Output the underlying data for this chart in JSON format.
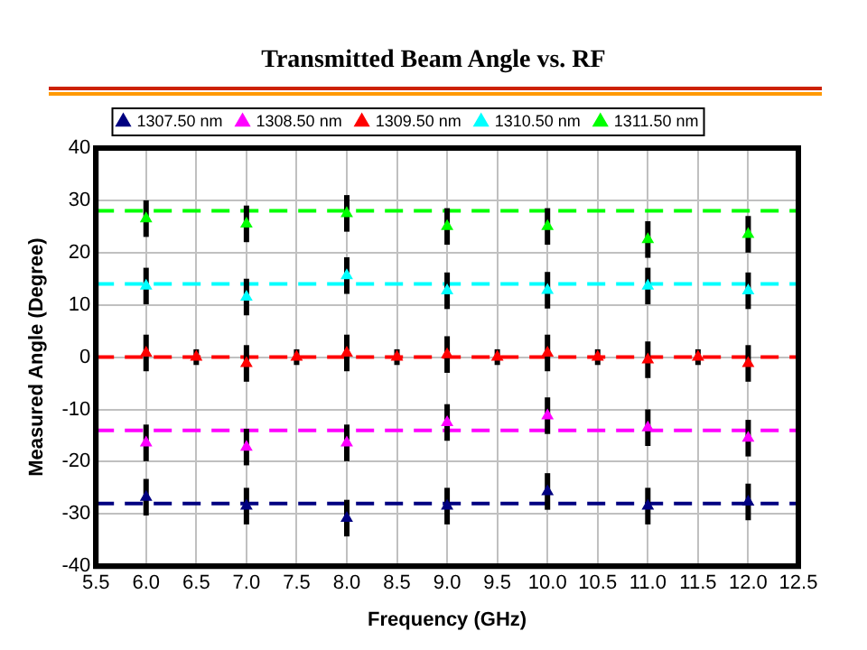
{
  "chart_data": {
    "type": "scatter",
    "title": "Transmitted Beam Angle vs. RF",
    "xlabel": "Frequency (GHz)",
    "ylabel": "Measured Angle (Degree)",
    "xlim": [
      5.5,
      12.5
    ],
    "xticks": [
      {
        "value": 5.5,
        "label": "5.5"
      },
      {
        "value": 6,
        "label": "6.0"
      },
      {
        "value": 6.5,
        "label": "6.5"
      },
      {
        "value": 7,
        "label": "7.0"
      },
      {
        "value": 7.5,
        "label": "7.5"
      },
      {
        "value": 8,
        "label": "8.0"
      },
      {
        "value": 8.5,
        "label": "8.5"
      },
      {
        "value": 9,
        "label": "9.0"
      },
      {
        "value": 9.5,
        "label": "9.5"
      },
      {
        "value": 10,
        "label": "10.0"
      },
      {
        "value": 10.5,
        "label": "10.5"
      },
      {
        "value": 11,
        "label": "11.0"
      },
      {
        "value": 11.5,
        "label": "11.5"
      },
      {
        "value": 12,
        "label": "12.0"
      },
      {
        "value": 12.5,
        "label": "12.5"
      }
    ],
    "ylim": [
      -40,
      40
    ],
    "yticks": [
      -40,
      -30,
      -20,
      -10,
      0,
      10,
      20,
      30,
      40
    ],
    "grid": true,
    "legend": "top",
    "marker": "triangle",
    "series": [
      {
        "name": "1307.50 nm",
        "color": "#000080",
        "x": [
          6,
          7,
          8,
          9,
          10,
          11,
          12
        ],
        "values": [
          -26.8,
          -28.5,
          -30.8,
          -28.5,
          -25.7,
          -28.5,
          -27.7
        ],
        "errors": [
          3.5,
          3.5,
          3.5,
          3.5,
          3.5,
          3.5,
          3.5
        ]
      },
      {
        "name": "1308.50 nm",
        "color": "#ff00ff",
        "x": [
          6,
          7,
          8,
          9,
          10,
          11,
          12
        ],
        "values": [
          -16.4,
          -17.2,
          -16.4,
          -12.5,
          -11.2,
          -13.5,
          -15.5
        ],
        "errors": [
          3.5,
          3.5,
          3.5,
          3.5,
          3.5,
          3.5,
          3.5
        ]
      },
      {
        "name": "1309.50 nm",
        "color": "#ff0000",
        "x": [
          6,
          6.5,
          7,
          7.5,
          8,
          8.5,
          9,
          9.5,
          10,
          10.5,
          11,
          11.5,
          12
        ],
        "values": [
          0.8,
          0,
          -1.2,
          0,
          0.8,
          0,
          0.5,
          0,
          0.8,
          0,
          -0.5,
          0,
          -1.2
        ],
        "errors": [
          3.5,
          1.5,
          3.5,
          1.5,
          3.5,
          1.5,
          3.5,
          1.5,
          3.5,
          1.5,
          3.5,
          1.5,
          3.5
        ]
      },
      {
        "name": "1310.50 nm",
        "color": "#00ffff",
        "x": [
          6,
          7,
          8,
          9,
          10,
          11,
          12
        ],
        "values": [
          13.6,
          11.5,
          15.6,
          12.7,
          12.8,
          13.6,
          12.7
        ],
        "errors": [
          3.5,
          3.5,
          3.5,
          3.5,
          3.5,
          3.5,
          3.5
        ]
      },
      {
        "name": "1311.50 nm",
        "color": "#00ff00",
        "x": [
          6,
          7,
          8,
          9,
          10,
          11,
          12
        ],
        "values": [
          26.5,
          25.5,
          27.5,
          25,
          25,
          22.5,
          23.5
        ],
        "errors": [
          3.5,
          3.5,
          3.5,
          3.5,
          3.5,
          3.5,
          3.5
        ]
      }
    ],
    "ref_lines": [
      {
        "axis": "y",
        "value": -28,
        "color": "#000080",
        "line_style": "dashed"
      },
      {
        "axis": "y",
        "value": -14,
        "color": "#ff00ff",
        "line_style": "dashed"
      },
      {
        "axis": "y",
        "value": 0,
        "color": "#ff0000",
        "line_style": "dashed"
      },
      {
        "axis": "y",
        "value": 14,
        "color": "#00ffff",
        "line_style": "dashed"
      },
      {
        "axis": "y",
        "value": 28,
        "color": "#00ff00",
        "line_style": "dashed"
      }
    ]
  }
}
